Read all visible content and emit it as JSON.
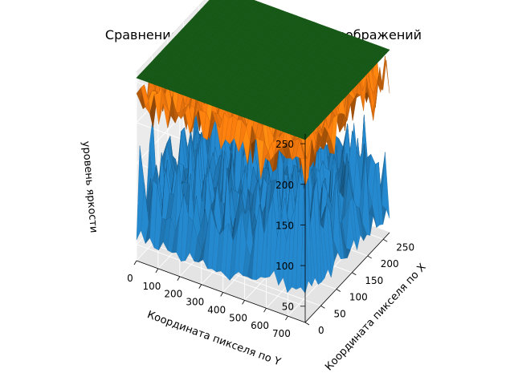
{
  "chart_data": {
    "type": "surface3d",
    "title": "Сравнение уровней яркости для изображений",
    "xlabel": "Координата пикселя по X",
    "ylabel": "Координата пикселя по Y",
    "zlabel": "уровень яркости",
    "xlim": [
      0,
      270
    ],
    "ylim": [
      0,
      780
    ],
    "zlim": [
      30,
      262
    ],
    "xticks": [
      0,
      50,
      100,
      150,
      200,
      250
    ],
    "yticks": [
      0,
      100,
      200,
      300,
      400,
      500,
      600,
      700
    ],
    "zticks": [
      50,
      100,
      150,
      200,
      250
    ],
    "grid": true,
    "series": [
      {
        "color": "#1f77b4",
        "description": "noisy surface, mostly 40–200, with a rising ridge near the far corner",
        "range": [
          35,
          215
        ]
      },
      {
        "color": "#ff7f0e",
        "description": "noisy surface close to the top level",
        "range": [
          180,
          255
        ]
      },
      {
        "color": "#2ca02c",
        "description": "flat plane at constant brightness",
        "value": 255
      }
    ]
  }
}
